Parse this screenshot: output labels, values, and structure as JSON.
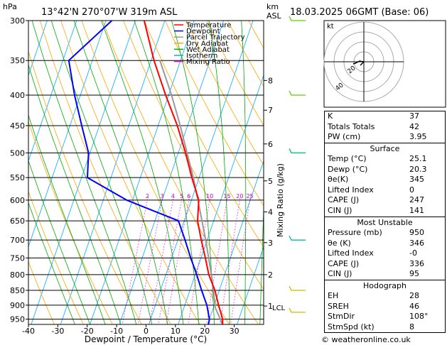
{
  "header": {
    "hpa_label": "hPa",
    "location": "13°42'N 270°07'W 319m ASL",
    "km_label": "km",
    "asl_label": "ASL",
    "datetime": "18.03.2025 06GMT (Base: 06)",
    "footer": "© weatheronline.co.uk"
  },
  "chart_data": {
    "type": "skew-t",
    "xlabel": "Dewpoint / Temperature (°C)",
    "ylabel": "Mixing Ratio (g/kg)",
    "pressure_levels": [
      300,
      350,
      400,
      450,
      500,
      550,
      600,
      650,
      700,
      750,
      800,
      850,
      900,
      950
    ],
    "x_ticks": [
      -40,
      -30,
      -20,
      -10,
      0,
      10,
      20,
      30
    ],
    "xlim": [
      -40,
      40
    ],
    "ylim_hpa": [
      970,
      300
    ],
    "km_ticks": [
      {
        "label": "8",
        "p": 378
      },
      {
        "label": "7",
        "p": 424
      },
      {
        "label": "6",
        "p": 483
      },
      {
        "label": "5",
        "p": 557
      },
      {
        "label": "4",
        "p": 628
      },
      {
        "label": "3",
        "p": 707
      },
      {
        "label": "2",
        "p": 800
      },
      {
        "label": "1",
        "p": 903
      }
    ],
    "lcl_label": "LCL",
    "lcl_p": 908,
    "mixing_ratio_labels": [
      "2",
      "3",
      "4",
      "5",
      "6",
      "10",
      "15",
      "20",
      "25"
    ],
    "mixing_ratio_values": [
      2,
      3,
      4,
      5,
      6,
      10,
      15,
      20,
      25
    ],
    "legend": [
      {
        "name": "Temperature",
        "color": "#ff0000"
      },
      {
        "name": "Dewpoint",
        "color": "#0000ff"
      },
      {
        "name": "Parcel Trajectory",
        "color": "#999999"
      },
      {
        "name": "Dry Adiabat",
        "color": "#ffa500"
      },
      {
        "name": "Wet Adiabat",
        "color": "#00aa00"
      },
      {
        "name": "Isotherm",
        "color": "#00aaff"
      },
      {
        "name": "Mixing Ratio",
        "color": "#ff00ff"
      }
    ],
    "temperature": [
      {
        "p": 970,
        "t": 25.1
      },
      {
        "p": 950,
        "t": 24.5
      },
      {
        "p": 900,
        "t": 21.5
      },
      {
        "p": 850,
        "t": 18.5
      },
      {
        "p": 800,
        "t": 14.6
      },
      {
        "p": 750,
        "t": 11.5
      },
      {
        "p": 700,
        "t": 8.0
      },
      {
        "p": 650,
        "t": 4.5
      },
      {
        "p": 600,
        "t": 2.5
      },
      {
        "p": 550,
        "t": -2.5
      },
      {
        "p": 500,
        "t": -7.5
      },
      {
        "p": 450,
        "t": -13.5
      },
      {
        "p": 400,
        "t": -21.0
      },
      {
        "p": 350,
        "t": -29.0
      },
      {
        "p": 300,
        "t": -37.0
      }
    ],
    "dewpoint": [
      {
        "p": 970,
        "t": 20.3
      },
      {
        "p": 950,
        "t": 20.0
      },
      {
        "p": 900,
        "t": 17.5
      },
      {
        "p": 850,
        "t": 14.0
      },
      {
        "p": 800,
        "t": 10.5
      },
      {
        "p": 750,
        "t": 6.5
      },
      {
        "p": 700,
        "t": 2.5
      },
      {
        "p": 650,
        "t": -2.0
      },
      {
        "p": 600,
        "t": -22.0
      },
      {
        "p": 550,
        "t": -38.0
      },
      {
        "p": 500,
        "t": -40.5
      },
      {
        "p": 450,
        "t": -46.0
      },
      {
        "p": 400,
        "t": -52.0
      },
      {
        "p": 350,
        "t": -58.0
      },
      {
        "p": 300,
        "t": -48.0
      }
    ],
    "parcel": [
      {
        "p": 970,
        "t": 25.1
      },
      {
        "p": 908,
        "t": 20.6
      },
      {
        "p": 850,
        "t": 18.0
      },
      {
        "p": 800,
        "t": 15.5
      },
      {
        "p": 750,
        "t": 12.6
      },
      {
        "p": 700,
        "t": 9.5
      },
      {
        "p": 650,
        "t": 6.0
      },
      {
        "p": 600,
        "t": 2.2
      },
      {
        "p": 550,
        "t": -2.0
      },
      {
        "p": 500,
        "t": -7.0
      },
      {
        "p": 450,
        "t": -12.5
      },
      {
        "p": 400,
        "t": -19.0
      },
      {
        "p": 350,
        "t": -27.0
      }
    ],
    "wind_barbs": [
      {
        "p": 300,
        "color": "#66cc00"
      },
      {
        "p": 400,
        "color": "#66cc00"
      },
      {
        "p": 500,
        "color": "#00bb66"
      },
      {
        "p": 700,
        "color": "#00bbaa"
      },
      {
        "p": 850,
        "color": "#ccbb00"
      },
      {
        "p": 925,
        "color": "#ccbb00"
      }
    ]
  },
  "hodograph": {
    "label": "kt",
    "ring_labels": [
      "20",
      "40"
    ]
  },
  "indices": [
    {
      "label": "K",
      "value": "37"
    },
    {
      "label": "Totals Totals",
      "value": "42"
    },
    {
      "label": "PW (cm)",
      "value": "3.95"
    }
  ],
  "surface": {
    "title": "Surface",
    "rows": [
      {
        "label": "Temp (°C)",
        "value": "25.1"
      },
      {
        "label": "Dewp (°C)",
        "value": "20.3"
      },
      {
        "label": "θe(K)",
        "value": "345"
      },
      {
        "label": "Lifted Index",
        "value": "0"
      },
      {
        "label": "CAPE (J)",
        "value": "247"
      },
      {
        "label": "CIN (J)",
        "value": "141"
      }
    ]
  },
  "most_unstable": {
    "title": "Most Unstable",
    "rows": [
      {
        "label": "Pressure (mb)",
        "value": "950"
      },
      {
        "label": "θe (K)",
        "value": "346"
      },
      {
        "label": "Lifted Index",
        "value": "-0"
      },
      {
        "label": "CAPE (J)",
        "value": "336"
      },
      {
        "label": "CIN (J)",
        "value": "95"
      }
    ]
  },
  "hodograph_table": {
    "title": "Hodograph",
    "rows": [
      {
        "label": "EH",
        "value": "28"
      },
      {
        "label": "SREH",
        "value": "46"
      },
      {
        "label": "StmDir",
        "value": "108°"
      },
      {
        "label": "StmSpd (kt)",
        "value": "8"
      }
    ]
  }
}
